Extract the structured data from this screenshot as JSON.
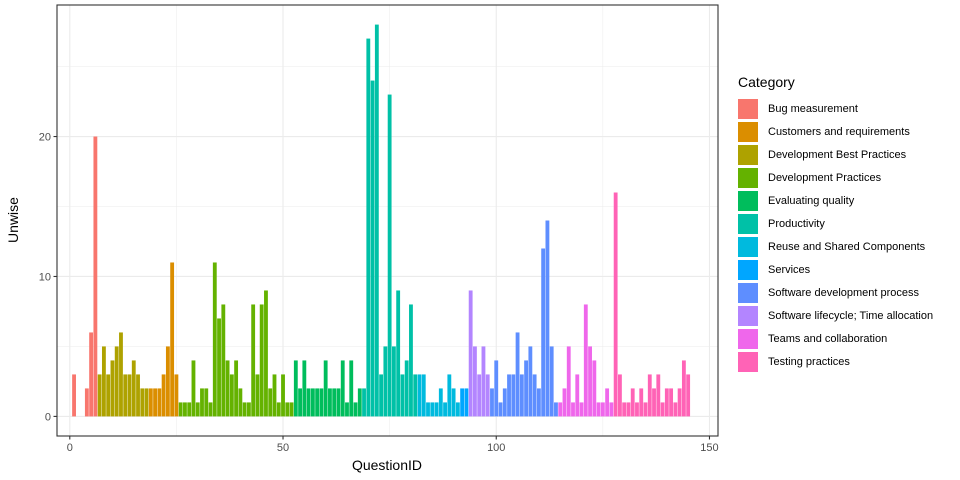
{
  "chart_data": {
    "type": "bar",
    "title": "",
    "xlabel": "QuestionID",
    "ylabel": "Unwise",
    "xlim": [
      -3,
      152
    ],
    "ylim": [
      -1.4,
      29.4
    ],
    "xticks": [
      0,
      50,
      100,
      150
    ],
    "yticks": [
      0,
      10,
      20
    ],
    "grid": true,
    "legend": {
      "title": "Category",
      "placement": "right"
    },
    "series": [
      {
        "name": "Bug measurement",
        "color": "#F8766D",
        "x": [
          1,
          4,
          5,
          6
        ],
        "values": [
          3,
          2,
          6,
          20
        ]
      },
      {
        "name": "Customers and requirements",
        "color": "#DB8E00",
        "x": [
          19,
          20,
          21,
          22,
          23,
          24,
          25
        ],
        "values": [
          2,
          2,
          2,
          3,
          5,
          11,
          3
        ]
      },
      {
        "name": "Development Best Practices",
        "color": "#AEA200",
        "x": [
          7,
          8,
          9,
          10,
          11,
          12,
          13,
          14,
          15,
          16,
          17,
          18
        ],
        "values": [
          3,
          5,
          3,
          4,
          5,
          6,
          3,
          3,
          4,
          3,
          2,
          2
        ]
      },
      {
        "name": "Development Practices",
        "color": "#64B200",
        "x": [
          26,
          27,
          28,
          29,
          30,
          31,
          32,
          33,
          34,
          35,
          36,
          37,
          38,
          39,
          40,
          41,
          42,
          43,
          44,
          45,
          46,
          47,
          48,
          49,
          50,
          51,
          52
        ],
        "values": [
          1,
          1,
          1,
          4,
          1,
          2,
          2,
          1,
          11,
          7,
          8,
          4,
          3,
          4,
          2,
          1,
          1,
          8,
          3,
          8,
          9,
          2,
          3,
          1,
          3,
          1,
          1
        ]
      },
      {
        "name": "Evaluating quality",
        "color": "#00BD5C",
        "x": [
          53,
          54,
          55,
          56,
          57,
          58,
          59,
          60,
          61,
          62,
          63,
          64,
          65,
          66,
          67,
          68
        ],
        "values": [
          4,
          2,
          4,
          2,
          2,
          2,
          2,
          4,
          2,
          2,
          2,
          4,
          1,
          4,
          1,
          2
        ]
      },
      {
        "name": "Productivity",
        "color": "#00C1A7",
        "x": [
          69,
          70,
          71,
          72,
          73,
          74,
          75,
          76,
          77,
          78,
          79,
          80,
          81
        ],
        "values": [
          2,
          27,
          24,
          28,
          3,
          5,
          23,
          5,
          9,
          3,
          4,
          8,
          3
        ]
      },
      {
        "name": "Reuse and Shared Components",
        "color": "#00BADE",
        "x": [
          82,
          83,
          84,
          85,
          86,
          87,
          88,
          89,
          90,
          91
        ],
        "values": [
          3,
          3,
          1,
          1,
          1,
          2,
          1,
          3,
          2,
          1
        ]
      },
      {
        "name": "Services",
        "color": "#00A6FF",
        "x": [
          92,
          93
        ],
        "values": [
          2,
          2
        ]
      },
      {
        "name": "Software development process",
        "color": "#5E8EFF",
        "x": [
          99,
          100,
          101,
          102,
          103,
          104,
          105,
          106,
          107,
          108,
          109,
          110,
          111,
          112,
          113,
          114
        ],
        "values": [
          2,
          4,
          1,
          2,
          3,
          3,
          6,
          3,
          4,
          5,
          3,
          2,
          12,
          14,
          5,
          1
        ]
      },
      {
        "name": "Software lifecycle; Time allocation",
        "color": "#B385FF",
        "x": [
          94,
          95,
          96,
          97,
          98
        ],
        "values": [
          9,
          5,
          3,
          5,
          3
        ]
      },
      {
        "name": "Teams and collaboration",
        "color": "#EF67EB",
        "x": [
          115,
          116,
          117,
          118,
          119,
          120,
          121,
          122,
          123,
          124,
          125,
          126,
          127
        ],
        "values": [
          1,
          2,
          5,
          1,
          3,
          1,
          8,
          5,
          4,
          1,
          1,
          2,
          1
        ]
      },
      {
        "name": "Testing practices",
        "color": "#FF63B6",
        "x": [
          128,
          129,
          130,
          131,
          132,
          133,
          134,
          135,
          136,
          137,
          138,
          139,
          140,
          141,
          142,
          143,
          144,
          145
        ],
        "values": [
          16,
          3,
          1,
          1,
          2,
          1,
          2,
          1,
          3,
          2,
          3,
          1,
          2,
          2,
          1,
          2,
          4,
          3
        ]
      }
    ]
  }
}
